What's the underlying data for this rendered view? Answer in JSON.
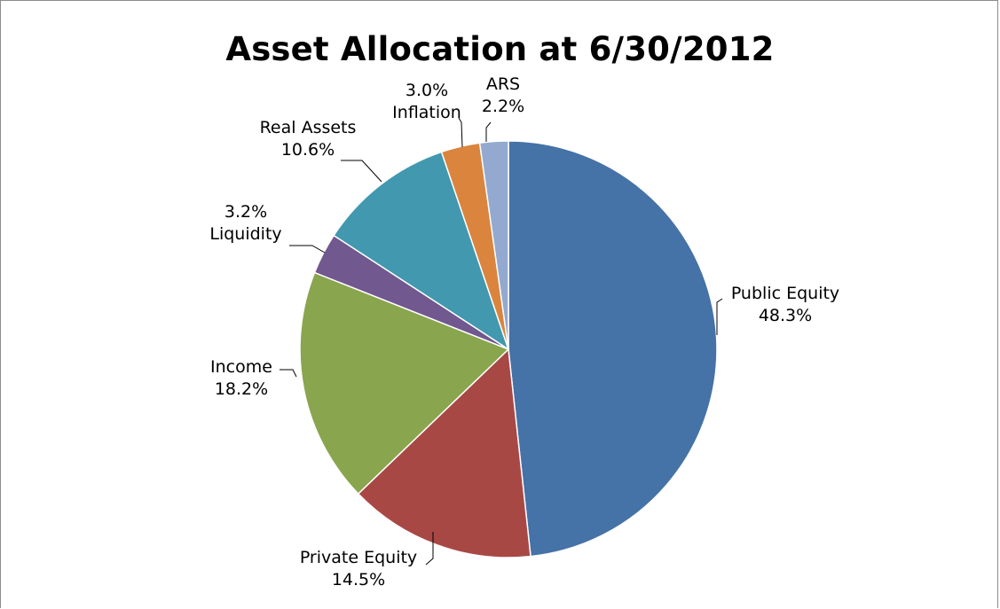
{
  "chart_data": {
    "type": "pie",
    "title": "Asset Allocation at 6/30/2012",
    "unit": "%",
    "slices": [
      {
        "name": "Public Equity",
        "value": 48.3,
        "label": "48.3%",
        "color": "#4572a7"
      },
      {
        "name": "Private Equity",
        "value": 14.5,
        "label": "14.5%",
        "color": "#a84845"
      },
      {
        "name": "Income",
        "value": 18.2,
        "label": "18.2%",
        "color": "#89a54e"
      },
      {
        "name": "Liquidity",
        "value": 3.2,
        "label": "3.2%",
        "color": "#71588f"
      },
      {
        "name": "Real Assets",
        "value": 10.6,
        "label": "10.6%",
        "color": "#4198af"
      },
      {
        "name": "Inflation",
        "value": 3.0,
        "label": "3.0%",
        "color": "#db843d"
      },
      {
        "name": "ARS",
        "value": 2.2,
        "label": "2.2%",
        "color": "#93a9cf"
      }
    ],
    "legend": "none",
    "data_labels": "outside with leader lines"
  }
}
